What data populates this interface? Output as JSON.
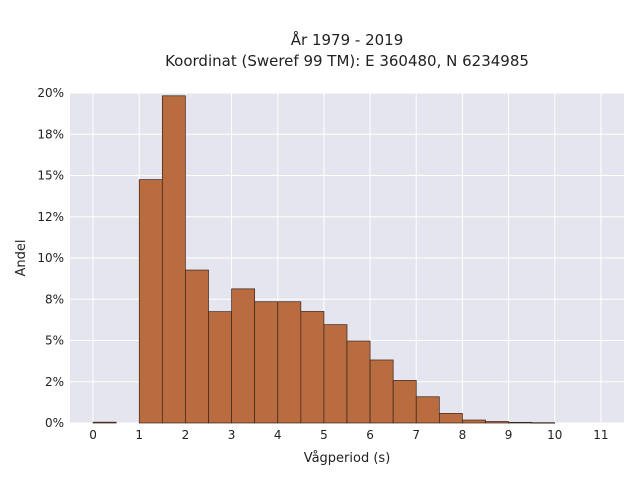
{
  "chart_data": {
    "type": "bar",
    "title_line1": "År 1979 - 2019",
    "title_line2": "Koordinat (Sweref 99 TM): E 360480, N 6234985",
    "xlabel": "Vågperiod (s)",
    "ylabel": "Andel",
    "x_ticks": [
      "0",
      "1",
      "2",
      "3",
      "4",
      "5",
      "6",
      "7",
      "8",
      "9",
      "10",
      "11"
    ],
    "y_ticks": [
      "0%",
      "2%",
      "5%",
      "8%",
      "10%",
      "12%",
      "15%",
      "18%",
      "20%"
    ],
    "xlim": [
      -0.5,
      11.5
    ],
    "ylim": [
      0,
      0.2
    ],
    "bin_width": 0.5,
    "bins": [
      {
        "x0": 0.0,
        "value": 0.0005
      },
      {
        "x0": 1.0,
        "value": 0.1475
      },
      {
        "x0": 1.5,
        "value": 0.1983
      },
      {
        "x0": 2.0,
        "value": 0.0927
      },
      {
        "x0": 2.5,
        "value": 0.0675
      },
      {
        "x0": 3.0,
        "value": 0.0813
      },
      {
        "x0": 3.5,
        "value": 0.0735
      },
      {
        "x0": 4.0,
        "value": 0.0735
      },
      {
        "x0": 4.5,
        "value": 0.0676
      },
      {
        "x0": 5.0,
        "value": 0.0596
      },
      {
        "x0": 5.5,
        "value": 0.0497
      },
      {
        "x0": 6.0,
        "value": 0.0382
      },
      {
        "x0": 6.5,
        "value": 0.0258
      },
      {
        "x0": 7.0,
        "value": 0.0159
      },
      {
        "x0": 7.5,
        "value": 0.0058
      },
      {
        "x0": 8.0,
        "value": 0.0018
      },
      {
        "x0": 8.5,
        "value": 0.0009
      },
      {
        "x0": 9.0,
        "value": 0.0004
      },
      {
        "x0": 9.5,
        "value": 0.0002
      }
    ],
    "grid": true,
    "colors": {
      "bar_fill": "#b86c3f",
      "bar_stroke": "#3a2418",
      "plot_bg": "#e5e5ef",
      "grid": "#ffffff"
    }
  }
}
